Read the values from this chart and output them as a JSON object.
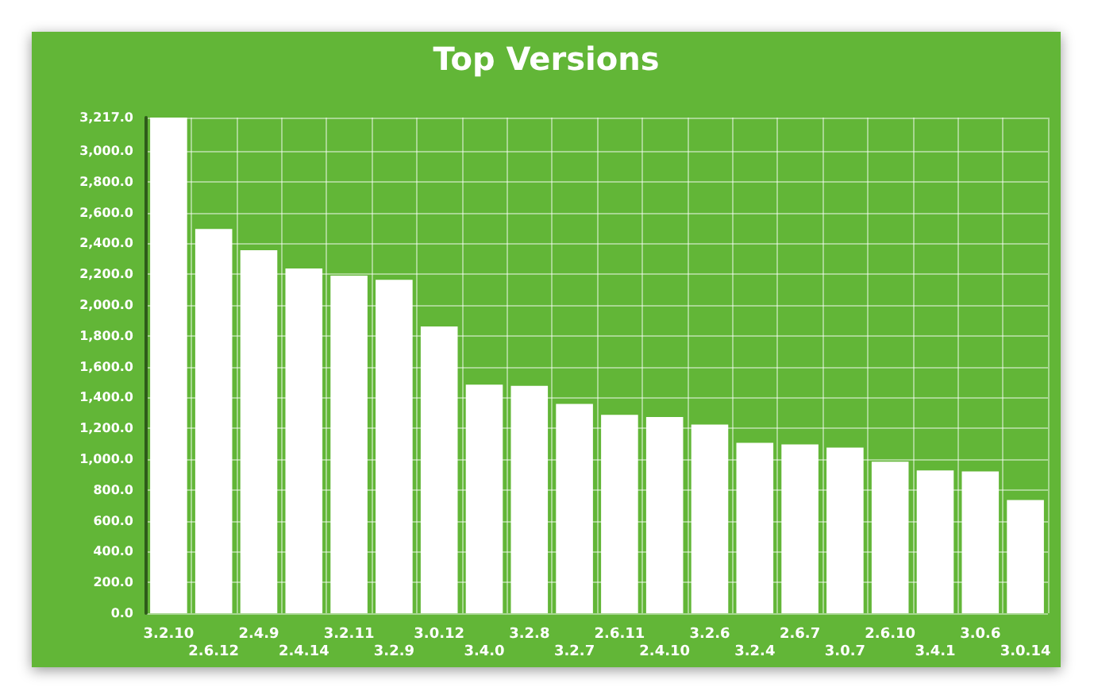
{
  "chart_data": {
    "type": "bar",
    "title": "Top Versions",
    "categories": [
      "3.2.10",
      "2.6.12",
      "2.4.9",
      "2.4.14",
      "3.2.11",
      "3.2.9",
      "3.0.12",
      "3.4.0",
      "3.2.8",
      "3.2.7",
      "2.6.11",
      "2.4.10",
      "3.2.6",
      "3.2.4",
      "2.6.7",
      "3.0.7",
      "2.6.10",
      "3.4.1",
      "3.0.6",
      "3.0.14"
    ],
    "values": [
      3217,
      2494,
      2356,
      2238,
      2191,
      2164,
      1861,
      1483,
      1476,
      1358,
      1288,
      1274,
      1224,
      1106,
      1096,
      1075,
      984,
      927,
      920,
      735
    ],
    "color": "#ffffff",
    "ylim": [
      0,
      3217
    ],
    "yticks": [
      {
        "value": 0,
        "label": "0.0"
      },
      {
        "value": 200,
        "label": "200.0"
      },
      {
        "value": 400,
        "label": "400.0"
      },
      {
        "value": 600,
        "label": "600.0"
      },
      {
        "value": 800,
        "label": "800.0"
      },
      {
        "value": 1000,
        "label": "1,000.0"
      },
      {
        "value": 1200,
        "label": "1,200.0"
      },
      {
        "value": 1400,
        "label": "1,400.0"
      },
      {
        "value": 1600,
        "label": "1,600.0"
      },
      {
        "value": 1800,
        "label": "1,800.0"
      },
      {
        "value": 2000,
        "label": "2,000.0"
      },
      {
        "value": 2200,
        "label": "2,200.0"
      },
      {
        "value": 2400,
        "label": "2,400.0"
      },
      {
        "value": 2600,
        "label": "2,600.0"
      },
      {
        "value": 2800,
        "label": "2,800.0"
      },
      {
        "value": 3000,
        "label": "3,000.0"
      },
      {
        "value": 3217,
        "label": "3,217.0"
      }
    ],
    "grid": true
  }
}
